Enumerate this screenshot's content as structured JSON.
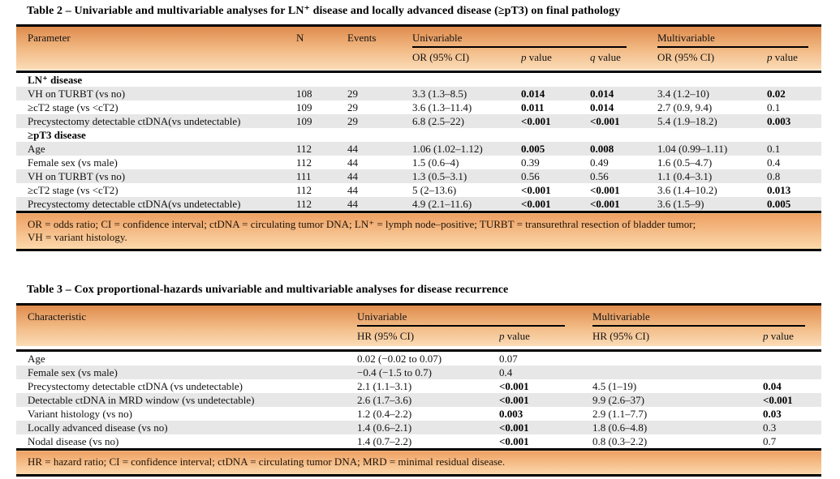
{
  "table2": {
    "title": "Table 2 – Univariable and multivariable analyses for LN⁺ disease and locally advanced disease (≥pT3) on final pathology",
    "columns": {
      "parameter": "Parameter",
      "n": "N",
      "events": "Events"
    },
    "groups": {
      "univariable": {
        "label": "Univariable",
        "or": "OR (95% CI)",
        "p": {
          "sym": "p",
          "word": "value"
        },
        "q": {
          "sym": "q",
          "word": "value"
        }
      },
      "multivariable": {
        "label": "Multivariable",
        "or": "OR (95% CI)",
        "p": {
          "sym": "p",
          "word": "value"
        }
      }
    },
    "rows": [
      {
        "section": "LN⁺ disease"
      },
      {
        "shaded": true,
        "cells": [
          "VH on TURBT (vs no)",
          "108",
          "29",
          "3.3 (1.3–8.5)",
          {
            "t": "0.014",
            "b": 1
          },
          {
            "t": "0.014",
            "b": 1
          },
          "3.4 (1.2–10)",
          {
            "t": "0.02",
            "b": 1
          }
        ]
      },
      {
        "shaded": false,
        "cells": [
          "≥cT2 stage (vs <cT2)",
          "109",
          "29",
          "3.6 (1.3–11.4)",
          {
            "t": "0.011",
            "b": 1
          },
          {
            "t": "0.014",
            "b": 1
          },
          "2.7 (0.9, 9.4)",
          "0.1"
        ]
      },
      {
        "shaded": true,
        "cells": [
          "Precystectomy detectable ctDNA(vs undetectable)",
          "109",
          "29",
          "6.8 (2.5–22)",
          {
            "t": "<0.001",
            "b": 1
          },
          {
            "t": "<0.001",
            "b": 1
          },
          "5.4 (1.9–18.2)",
          {
            "t": "0.003",
            "b": 1
          }
        ]
      },
      {
        "section": "≥pT3 disease"
      },
      {
        "shaded": true,
        "cells": [
          "Age",
          "112",
          "44",
          "1.06 (1.02–1.12)",
          {
            "t": "0.005",
            "b": 1
          },
          {
            "t": "0.008",
            "b": 1
          },
          "1.04 (0.99–1.11)",
          "0.1"
        ]
      },
      {
        "shaded": false,
        "cells": [
          "Female sex (vs male)",
          "112",
          "44",
          "1.5 (0.6–4)",
          "0.39",
          "0.49",
          "1.6 (0.5–4.7)",
          "0.4"
        ]
      },
      {
        "shaded": true,
        "cells": [
          "VH on TURBT (vs no)",
          "111",
          "44",
          "1.3 (0.5–3.1)",
          "0.56",
          "0.56",
          "1.1 (0.4–3.1)",
          "0.8"
        ]
      },
      {
        "shaded": false,
        "cells": [
          "≥cT2 stage (vs <cT2)",
          "112",
          "44",
          "5 (2–13.6)",
          {
            "t": "<0.001",
            "b": 1
          },
          {
            "t": "<0.001",
            "b": 1
          },
          "3.6 (1.4–10.2)",
          {
            "t": "0.013",
            "b": 1
          }
        ]
      },
      {
        "shaded": true,
        "cells": [
          "Precystectomy detectable ctDNA(vs undetectable)",
          "112",
          "44",
          "4.9 (2.1–11.6)",
          {
            "t": "<0.001",
            "b": 1
          },
          {
            "t": "<0.001",
            "b": 1
          },
          "3.6 (1.5–9)",
          {
            "t": "0.005",
            "b": 1
          }
        ]
      }
    ],
    "footnote": {
      "line1": "OR = odds ratio; CI = confidence interval; ctDNA = circulating tumor DNA; LN⁺ = lymph node–positive; TURBT = transurethral resection of bladder tumor;",
      "line2": "VH = variant histology."
    }
  },
  "table3": {
    "title": "Table 3 – Cox proportional-hazards univariable and multivariable analyses for disease recurrence",
    "columns": {
      "characteristic": "Characteristic"
    },
    "groups": {
      "univariable": {
        "label": "Univariable",
        "hr": "HR (95% CI)",
        "p": {
          "sym": "p",
          "word": "value"
        }
      },
      "multivariable": {
        "label": "Multivariable",
        "hr": "HR (95% CI)",
        "p": {
          "sym": "p",
          "word": "value"
        }
      }
    },
    "rows": [
      {
        "shaded": false,
        "cells": [
          "Age",
          "0.02 (−0.02 to 0.07)",
          "0.07",
          "",
          ""
        ]
      },
      {
        "shaded": true,
        "cells": [
          "Female sex (vs male)",
          "−0.4 (−1.5 to 0.7)",
          "0.4",
          "",
          ""
        ]
      },
      {
        "shaded": false,
        "cells": [
          "Precystectomy detectable ctDNA (vs undetectable)",
          "2.1 (1.1–3.1)",
          {
            "t": "<0.001",
            "b": 1
          },
          "4.5 (1–19)",
          {
            "t": "0.04",
            "b": 1
          }
        ]
      },
      {
        "shaded": true,
        "cells": [
          "Detectable ctDNA in MRD window (vs undetectable)",
          "2.6 (1.7–3.6)",
          {
            "t": "<0.001",
            "b": 1
          },
          "9.9 (2.6–37)",
          {
            "t": "<0.001",
            "b": 1
          }
        ]
      },
      {
        "shaded": false,
        "cells": [
          "Variant histology (vs no)",
          "1.2 (0.4–2.2)",
          {
            "t": "0.003",
            "b": 1
          },
          "2.9 (1.1–7.7)",
          {
            "t": "0.03",
            "b": 1
          }
        ]
      },
      {
        "shaded": true,
        "cells": [
          "Locally advanced disease (vs no)",
          "1.4 (0.6–2.1)",
          {
            "t": "<0.001",
            "b": 1
          },
          "1.8 (0.6–4.8)",
          "0.3"
        ]
      },
      {
        "shaded": false,
        "cells": [
          "Nodal disease (vs no)",
          "1.4 (0.7–2.2)",
          {
            "t": "<0.001",
            "b": 1
          },
          "0.8 (0.3–2.2)",
          "0.7"
        ]
      }
    ],
    "footnote": {
      "line1": "HR = hazard ratio; CI = confidence interval; ctDNA = circulating tumor DNA; MRD = minimal residual disease."
    }
  }
}
